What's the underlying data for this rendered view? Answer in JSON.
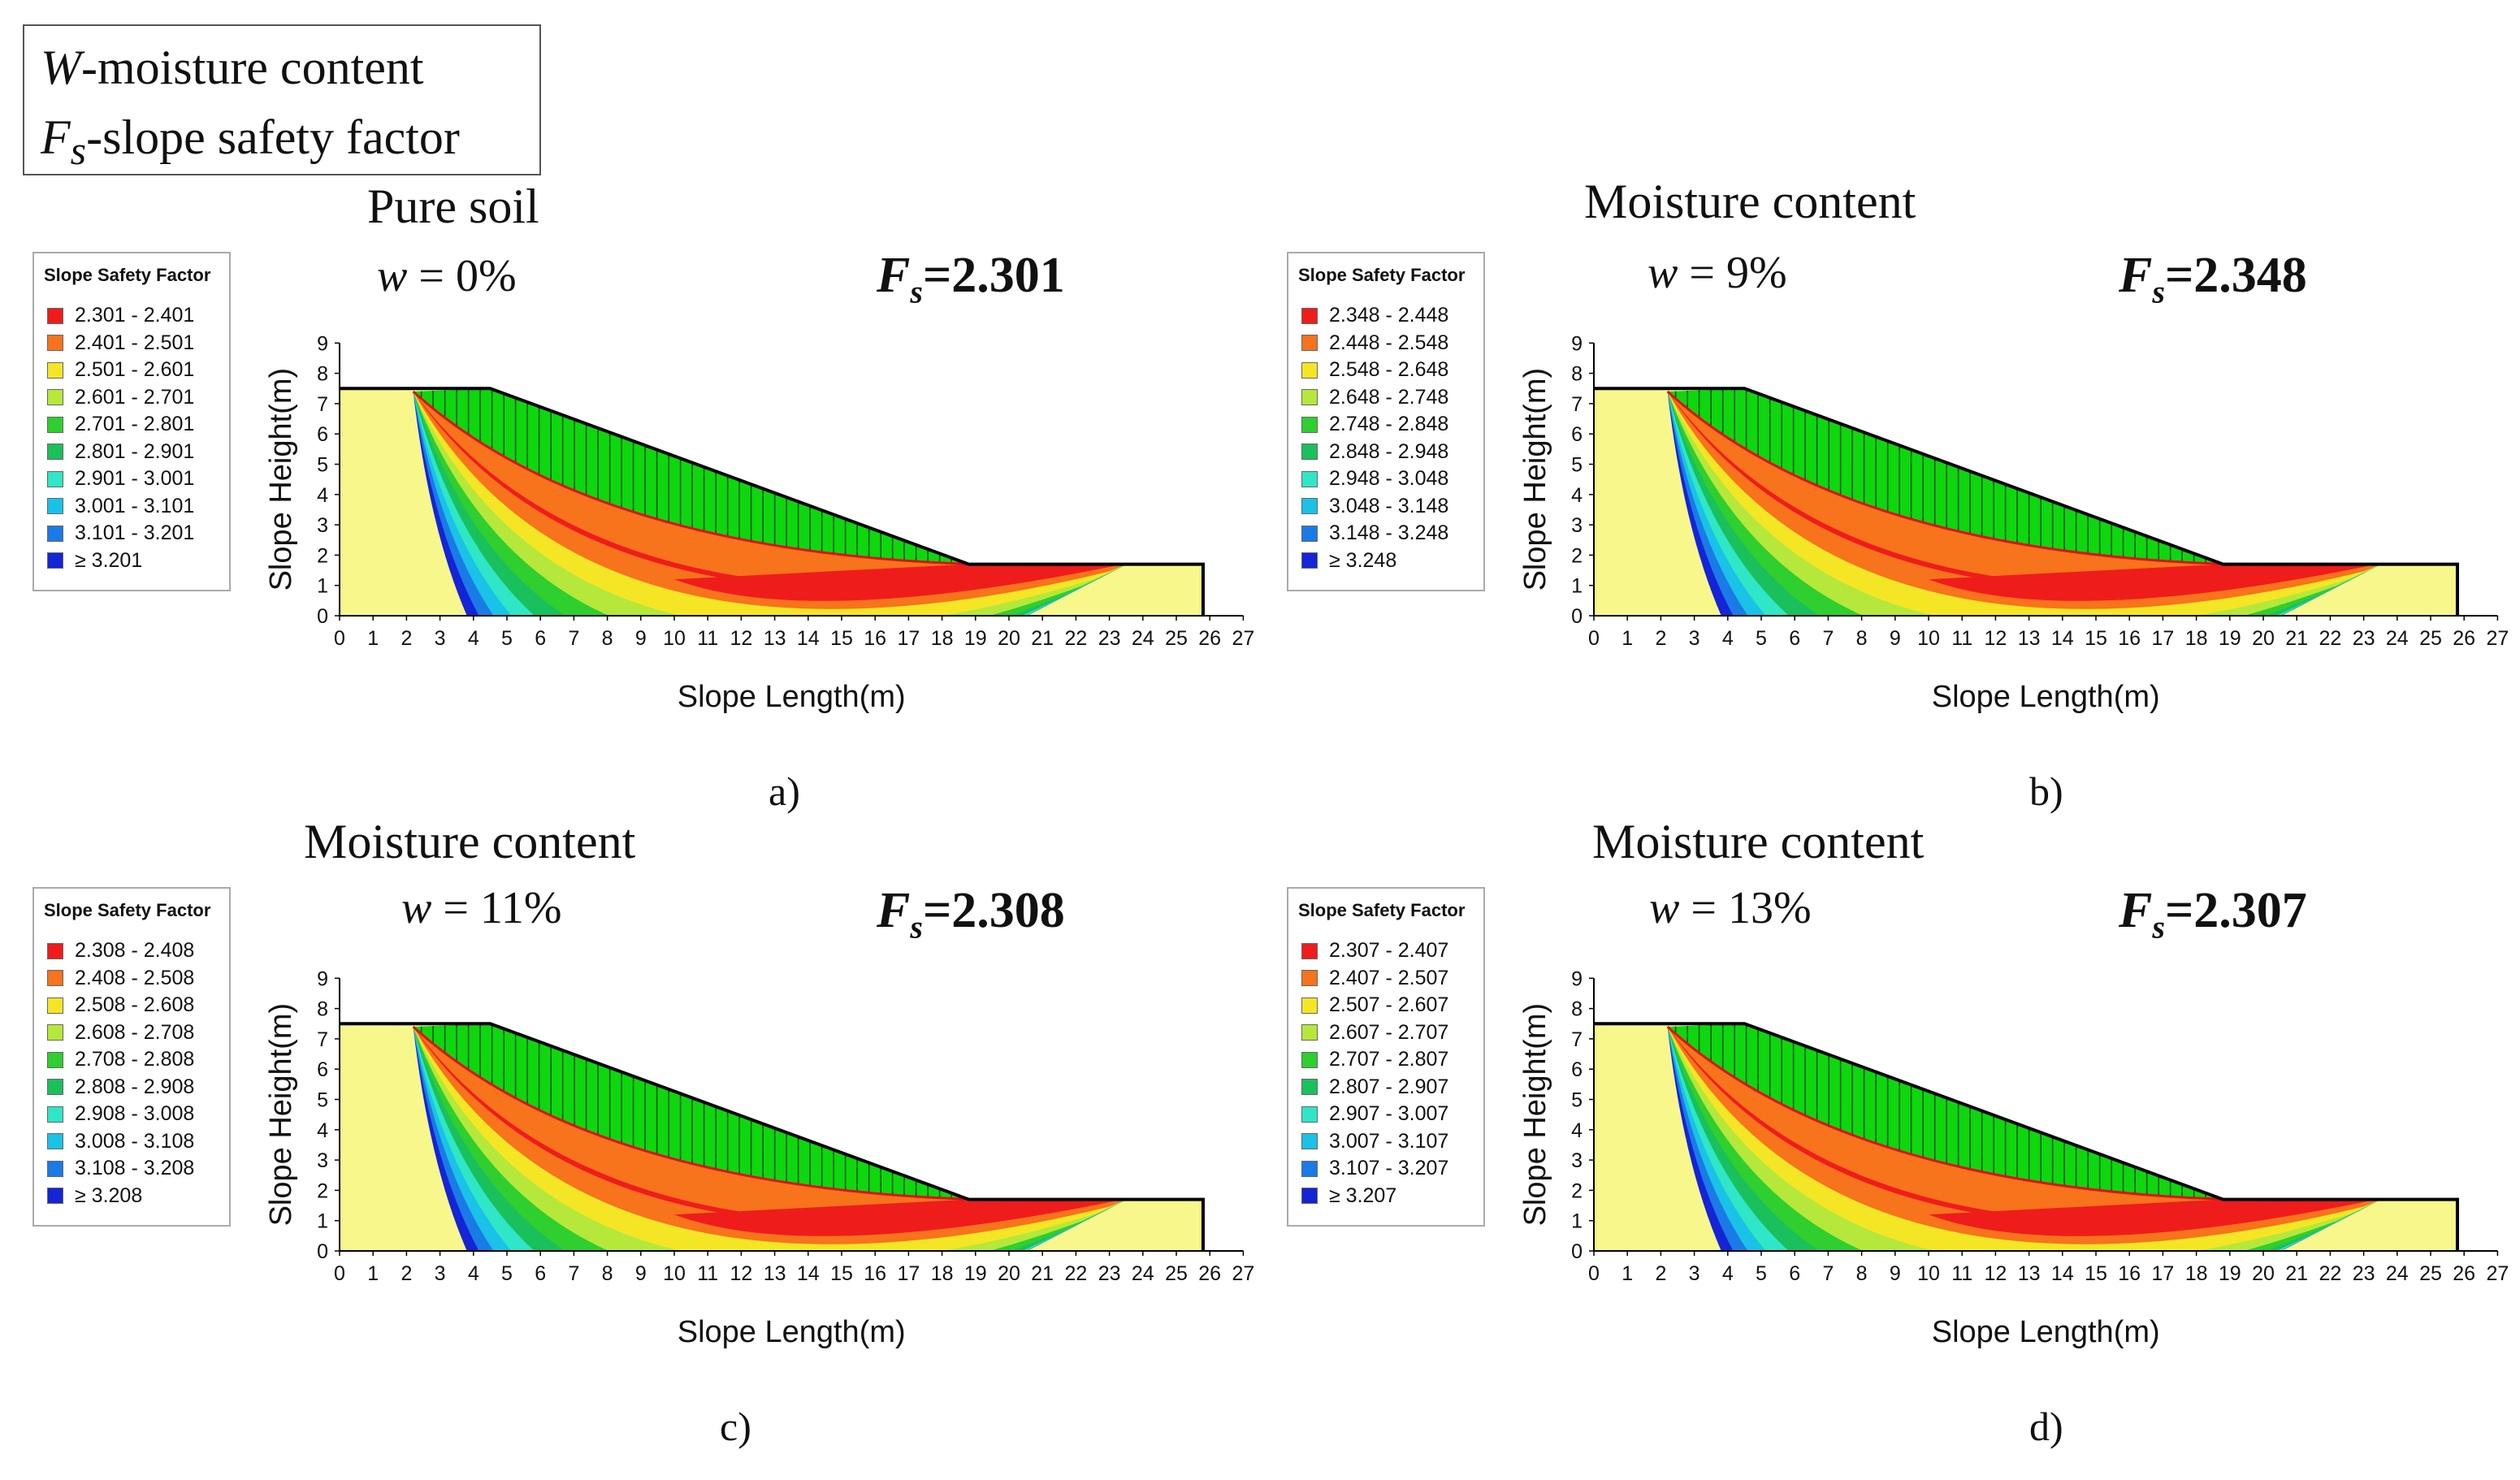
{
  "notes": {
    "line1_symbol": "W",
    "line1_text": "-moisture content",
    "line2_symbol": "F",
    "line2_sub": "s",
    "line2_text": "-slope safety factor"
  },
  "colors": {
    "bands": [
      "#ef1c1c",
      "#f7731c",
      "#f5e625",
      "#b5e83a",
      "#2ecf2e",
      "#19c05c",
      "#2fe6c6",
      "#19c2e6",
      "#1a7ae6",
      "#1424d6"
    ],
    "soil": "#f7f78c",
    "mass": "#0ed70e"
  },
  "chart_data": [
    {
      "id": "a",
      "type": "heatmap",
      "title": "Pure soil",
      "moisture_symbol": "w",
      "moisture_text": " = 0%",
      "fs_symbol": "F",
      "fs_sub": "s",
      "fs_value": "=2.301",
      "caption": "a)",
      "legend_title": "Slope Safety Factor",
      "legend": [
        "2.301 - 2.401",
        "2.401 - 2.501",
        "2.501 - 2.601",
        "2.601 - 2.701",
        "2.701 - 2.801",
        "2.801 - 2.901",
        "2.901 - 3.001",
        "3.001 - 3.101",
        "3.101 - 3.201",
        "≥ 3.201"
      ],
      "xlabel": "Slope Length(m)",
      "ylabel": "Slope Height(m)",
      "xticks": [
        "0",
        "1",
        "2",
        "3",
        "4",
        "5",
        "6",
        "7",
        "8",
        "9",
        "10",
        "11",
        "12",
        "13",
        "14",
        "15",
        "16",
        "17",
        "18",
        "19",
        "20",
        "21",
        "22",
        "23",
        "24",
        "25",
        "26",
        "27"
      ],
      "yticks": [
        "0",
        "1",
        "2",
        "3",
        "4",
        "5",
        "6",
        "7",
        "8",
        "9"
      ],
      "xlim": [
        0,
        27
      ],
      "ylim": [
        0,
        9
      ],
      "slope_profile": [
        [
          0,
          7.5
        ],
        [
          4.5,
          7.5
        ],
        [
          18.8,
          1.7
        ],
        [
          25.8,
          1.7
        ]
      ],
      "critical_surface": {
        "entry_x": 2.2,
        "exit_x": 23.4,
        "lowest": [
          14,
          0.9
        ]
      }
    },
    {
      "id": "b",
      "type": "heatmap",
      "title": "Moisture content",
      "moisture_symbol": "w",
      "moisture_text": " = 9%",
      "fs_symbol": "F",
      "fs_sub": "s",
      "fs_value": "=2.348",
      "caption": "b)",
      "legend_title": "Slope Safety Factor",
      "legend": [
        "2.348 - 2.448",
        "2.448 - 2.548",
        "2.548 - 2.648",
        "2.648 - 2.748",
        "2.748 - 2.848",
        "2.848 - 2.948",
        "2.948 - 3.048",
        "3.048 - 3.148",
        "3.148 - 3.248",
        "≥ 3.248"
      ],
      "xlabel": "Slope Length(m)",
      "ylabel": "Slope Height(m)",
      "xticks": [
        "0",
        "1",
        "2",
        "3",
        "4",
        "5",
        "6",
        "7",
        "8",
        "9",
        "10",
        "11",
        "12",
        "13",
        "14",
        "15",
        "16",
        "17",
        "18",
        "19",
        "20",
        "21",
        "22",
        "23",
        "24",
        "25",
        "26",
        "27"
      ],
      "yticks": [
        "0",
        "1",
        "2",
        "3",
        "4",
        "5",
        "6",
        "7",
        "8",
        "9"
      ],
      "xlim": [
        0,
        27
      ],
      "ylim": [
        0,
        9
      ],
      "slope_profile": [
        [
          0,
          7.5
        ],
        [
          4.5,
          7.5
        ],
        [
          18.8,
          1.7
        ],
        [
          25.8,
          1.7
        ]
      ],
      "critical_surface": {
        "entry_x": 2.2,
        "exit_x": 23.4,
        "lowest": [
          14,
          0.9
        ]
      }
    },
    {
      "id": "c",
      "type": "heatmap",
      "title": "Moisture content",
      "moisture_symbol": "w",
      "moisture_text": " = 11%",
      "fs_symbol": "F",
      "fs_sub": "s",
      "fs_value": "=2.308",
      "caption": "c)",
      "legend_title": "Slope Safety Factor",
      "legend": [
        "2.308 - 2.408",
        "2.408 - 2.508",
        "2.508 - 2.608",
        "2.608 - 2.708",
        "2.708 - 2.808",
        "2.808 - 2.908",
        "2.908 - 3.008",
        "3.008 - 3.108",
        "3.108 - 3.208",
        "≥ 3.208"
      ],
      "xlabel": "Slope Length(m)",
      "ylabel": "Slope Height(m)",
      "xticks": [
        "0",
        "1",
        "2",
        "3",
        "4",
        "5",
        "6",
        "7",
        "8",
        "9",
        "10",
        "11",
        "12",
        "13",
        "14",
        "15",
        "16",
        "17",
        "18",
        "19",
        "20",
        "21",
        "22",
        "23",
        "24",
        "25",
        "26",
        "27"
      ],
      "yticks": [
        "0",
        "1",
        "2",
        "3",
        "4",
        "5",
        "6",
        "7",
        "8",
        "9"
      ],
      "xlim": [
        0,
        27
      ],
      "ylim": [
        0,
        9
      ],
      "slope_profile": [
        [
          0,
          7.5
        ],
        [
          4.5,
          7.5
        ],
        [
          18.8,
          1.7
        ],
        [
          25.8,
          1.7
        ]
      ],
      "critical_surface": {
        "entry_x": 2.2,
        "exit_x": 23.4,
        "lowest": [
          14,
          0.9
        ]
      }
    },
    {
      "id": "d",
      "type": "heatmap",
      "title": "Moisture content",
      "moisture_symbol": "w",
      "moisture_text": " = 13%",
      "fs_symbol": "F",
      "fs_sub": "s",
      "fs_value": "=2.307",
      "caption": "d)",
      "legend_title": "Slope Safety Factor",
      "legend": [
        "2.307 - 2.407",
        "2.407 - 2.507",
        "2.507 - 2.607",
        "2.607 - 2.707",
        "2.707 - 2.807",
        "2.807 - 2.907",
        "2.907 - 3.007",
        "3.007 - 3.107",
        "3.107 - 3.207",
        "≥ 3.207"
      ],
      "xlabel": "Slope Length(m)",
      "ylabel": "Slope Height(m)",
      "xticks": [
        "0",
        "1",
        "2",
        "3",
        "4",
        "5",
        "6",
        "7",
        "8",
        "9",
        "10",
        "11",
        "12",
        "13",
        "14",
        "15",
        "16",
        "17",
        "18",
        "19",
        "20",
        "21",
        "22",
        "23",
        "24",
        "25",
        "26",
        "27"
      ],
      "yticks": [
        "0",
        "1",
        "2",
        "3",
        "4",
        "5",
        "6",
        "7",
        "8",
        "9"
      ],
      "xlim": [
        0,
        27
      ],
      "ylim": [
        0,
        9
      ],
      "slope_profile": [
        [
          0,
          7.5
        ],
        [
          4.5,
          7.5
        ],
        [
          18.8,
          1.7
        ],
        [
          25.8,
          1.7
        ]
      ],
      "critical_surface": {
        "entry_x": 2.2,
        "exit_x": 23.4,
        "lowest": [
          14,
          0.9
        ]
      }
    }
  ]
}
